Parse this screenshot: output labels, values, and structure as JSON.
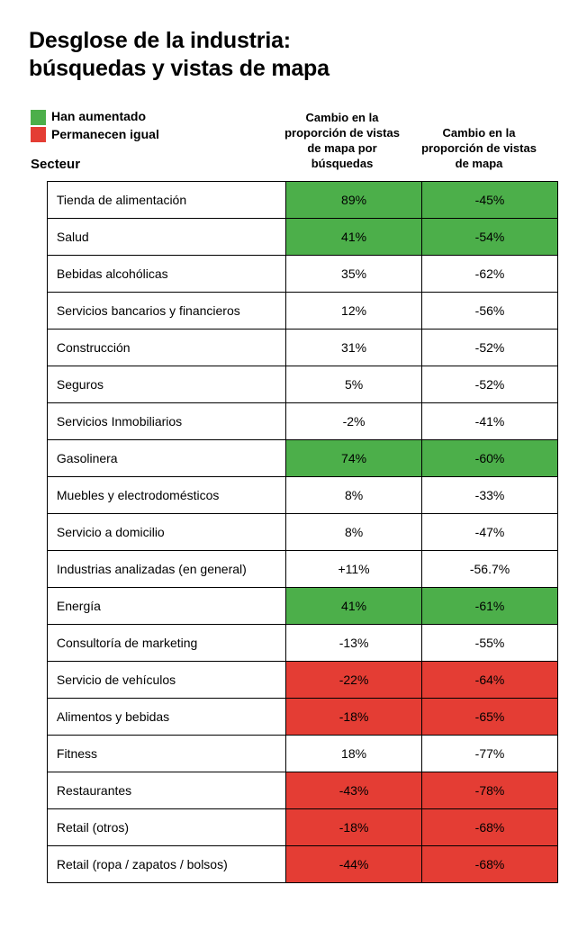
{
  "colors": {
    "increased": "#4caf4a",
    "same": "#e43d34",
    "border": "#000000",
    "text": "#000000",
    "plain_bg": "#ffffff"
  },
  "title_line1": "Desglose de la industria:",
  "title_line2": "búsquedas y vistas de mapa",
  "legend": {
    "increased": "Han aumentado",
    "same": "Permanecen igual"
  },
  "headers": {
    "sector": "Secteur",
    "col1": "Cambio en la proporción de vistas de mapa por búsquedas",
    "col2": "Cambio en la proporción de vistas de mapa"
  },
  "rows": [
    {
      "label": "Tienda de alimentación",
      "v1": "89%",
      "v2": "-45%",
      "status": "increased"
    },
    {
      "label": "Salud",
      "v1": "41%",
      "v2": "-54%",
      "status": "increased"
    },
    {
      "label": "Bebidas alcohólicas",
      "v1": "35%",
      "v2": "-62%",
      "status": "plain"
    },
    {
      "label": "Servicios bancarios y financieros",
      "v1": "12%",
      "v2": "-56%",
      "status": "plain"
    },
    {
      "label": "Construcción",
      "v1": "31%",
      "v2": "-52%",
      "status": "plain"
    },
    {
      "label": "Seguros",
      "v1": "5%",
      "v2": "-52%",
      "status": "plain"
    },
    {
      "label": "Servicios Inmobiliarios",
      "v1": "-2%",
      "v2": "-41%",
      "status": "plain"
    },
    {
      "label": "Gasolinera",
      "v1": "74%",
      "v2": "-60%",
      "status": "increased"
    },
    {
      "label": "Muebles y electrodomésticos",
      "v1": "8%",
      "v2": "-33%",
      "status": "plain"
    },
    {
      "label": "Servicio a domicilio",
      "v1": "8%",
      "v2": "-47%",
      "status": "plain"
    },
    {
      "label": "Industrias analizadas (en general)",
      "v1": "+11%",
      "v2": "-56.7%",
      "status": "plain"
    },
    {
      "label": "Energía",
      "v1": "41%",
      "v2": "-61%",
      "status": "increased"
    },
    {
      "label": "Consultoría de marketing",
      "v1": "-13%",
      "v2": "-55%",
      "status": "plain"
    },
    {
      "label": "Servicio de vehículos",
      "v1": "-22%",
      "v2": "-64%",
      "status": "same"
    },
    {
      "label": "Alimentos y bebidas",
      "v1": "-18%",
      "v2": "-65%",
      "status": "same"
    },
    {
      "label": "Fitness",
      "v1": "18%",
      "v2": "-77%",
      "status": "plain"
    },
    {
      "label": "Restaurantes",
      "v1": "-43%",
      "v2": "-78%",
      "status": "same"
    },
    {
      "label": "Retail (otros)",
      "v1": "-18%",
      "v2": "-68%",
      "status": "same"
    },
    {
      "label": "Retail (ropa / zapatos / bolsos)",
      "v1": "-44%",
      "v2": "-68%",
      "status": "same"
    }
  ]
}
